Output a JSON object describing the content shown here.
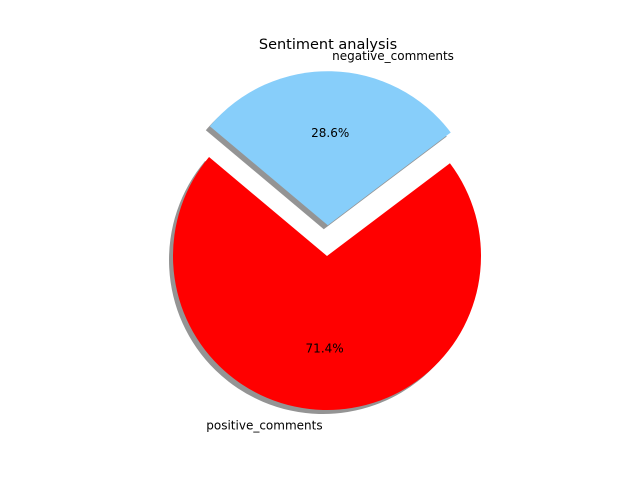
{
  "chart_data": {
    "type": "pie",
    "title": "Sentiment analysis",
    "slices": [
      {
        "label": "positive_comments",
        "value": 71.4,
        "pct_label": "71.4%",
        "color": "#ff0000",
        "exploded": false
      },
      {
        "label": "negative_comments",
        "value": 28.6,
        "pct_label": "28.6%",
        "color": "#87cefa",
        "exploded": true
      }
    ],
    "shadow": true,
    "legend": "none"
  }
}
